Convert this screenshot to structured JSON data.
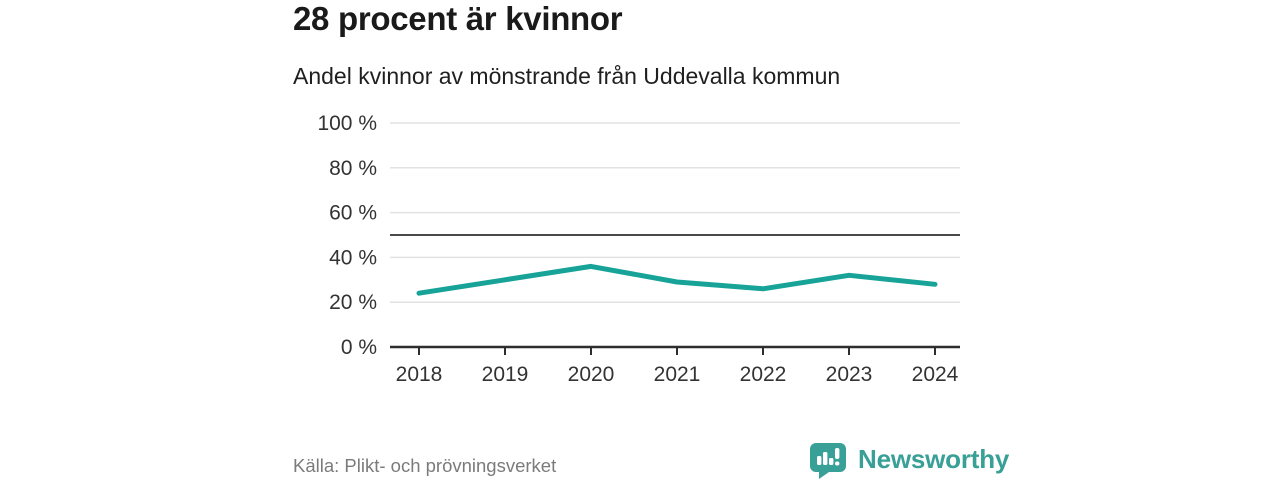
{
  "header": {
    "title": "28 procent är kvinnor",
    "subtitle": "Andel kvinnor av mönstrande från Uddevalla kommun"
  },
  "footer": {
    "source": "Källa: Plikt- och prövningsverket",
    "brand": "Newsworthy"
  },
  "colors": {
    "line": "#17a398",
    "brand": "#38a096",
    "grid": "#e2e2e2",
    "axis": "#2e2e2e",
    "reference": "#4a4a4a",
    "axis_text": "#333333",
    "source_text": "#7b7b7b"
  },
  "chart_data": {
    "type": "line",
    "title": "28 procent är kvinnor",
    "subtitle": "Andel kvinnor av mönstrande från Uddevalla kommun",
    "x": [
      2018,
      2019,
      2020,
      2021,
      2022,
      2023,
      2024
    ],
    "series": [
      {
        "name": "Andel kvinnor av mönstrande",
        "values": [
          24,
          30,
          36,
          29,
          26,
          32,
          28
        ]
      }
    ],
    "unit": "%",
    "ylim": [
      0,
      100
    ],
    "yticks": [
      {
        "value": 0,
        "label": "0 %"
      },
      {
        "value": 20,
        "label": "20 %"
      },
      {
        "value": 40,
        "label": "40 %"
      },
      {
        "value": 60,
        "label": "60 %"
      },
      {
        "value": 80,
        "label": "80 %"
      },
      {
        "value": 100,
        "label": "100 %"
      }
    ],
    "reference_line": {
      "value": 50
    },
    "grid": true,
    "legend": false,
    "source": "Källa: Plikt- och prövningsverket"
  }
}
